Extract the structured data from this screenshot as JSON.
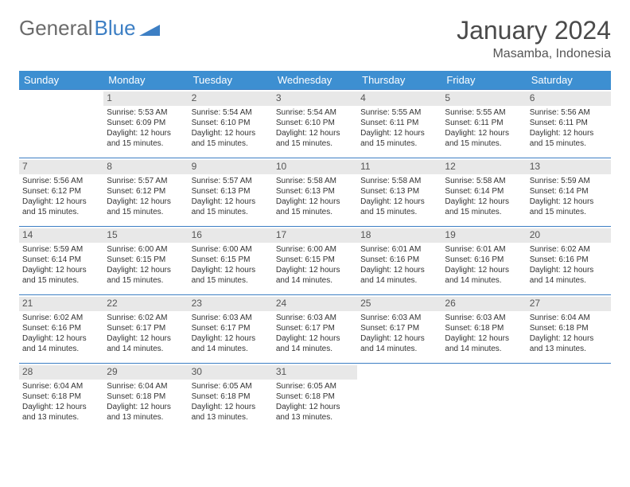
{
  "logo": {
    "text1": "General",
    "text2": "Blue"
  },
  "title": "January 2024",
  "location": "Masamba, Indonesia",
  "colors": {
    "header_bg": "#3d8fd1",
    "header_text": "#ffffff",
    "border": "#3d7fc4",
    "daynum_bg": "#e8e8e8",
    "logo_gray": "#6b6b6b",
    "logo_blue": "#3d7fc4"
  },
  "weekdays": [
    "Sunday",
    "Monday",
    "Tuesday",
    "Wednesday",
    "Thursday",
    "Friday",
    "Saturday"
  ],
  "weeks": [
    [
      null,
      {
        "d": "1",
        "sr": "5:53 AM",
        "ss": "6:09 PM",
        "dl": "12 hours and 15 minutes."
      },
      {
        "d": "2",
        "sr": "5:54 AM",
        "ss": "6:10 PM",
        "dl": "12 hours and 15 minutes."
      },
      {
        "d": "3",
        "sr": "5:54 AM",
        "ss": "6:10 PM",
        "dl": "12 hours and 15 minutes."
      },
      {
        "d": "4",
        "sr": "5:55 AM",
        "ss": "6:11 PM",
        "dl": "12 hours and 15 minutes."
      },
      {
        "d": "5",
        "sr": "5:55 AM",
        "ss": "6:11 PM",
        "dl": "12 hours and 15 minutes."
      },
      {
        "d": "6",
        "sr": "5:56 AM",
        "ss": "6:11 PM",
        "dl": "12 hours and 15 minutes."
      }
    ],
    [
      {
        "d": "7",
        "sr": "5:56 AM",
        "ss": "6:12 PM",
        "dl": "12 hours and 15 minutes."
      },
      {
        "d": "8",
        "sr": "5:57 AM",
        "ss": "6:12 PM",
        "dl": "12 hours and 15 minutes."
      },
      {
        "d": "9",
        "sr": "5:57 AM",
        "ss": "6:13 PM",
        "dl": "12 hours and 15 minutes."
      },
      {
        "d": "10",
        "sr": "5:58 AM",
        "ss": "6:13 PM",
        "dl": "12 hours and 15 minutes."
      },
      {
        "d": "11",
        "sr": "5:58 AM",
        "ss": "6:13 PM",
        "dl": "12 hours and 15 minutes."
      },
      {
        "d": "12",
        "sr": "5:58 AM",
        "ss": "6:14 PM",
        "dl": "12 hours and 15 minutes."
      },
      {
        "d": "13",
        "sr": "5:59 AM",
        "ss": "6:14 PM",
        "dl": "12 hours and 15 minutes."
      }
    ],
    [
      {
        "d": "14",
        "sr": "5:59 AM",
        "ss": "6:14 PM",
        "dl": "12 hours and 15 minutes."
      },
      {
        "d": "15",
        "sr": "6:00 AM",
        "ss": "6:15 PM",
        "dl": "12 hours and 15 minutes."
      },
      {
        "d": "16",
        "sr": "6:00 AM",
        "ss": "6:15 PM",
        "dl": "12 hours and 15 minutes."
      },
      {
        "d": "17",
        "sr": "6:00 AM",
        "ss": "6:15 PM",
        "dl": "12 hours and 14 minutes."
      },
      {
        "d": "18",
        "sr": "6:01 AM",
        "ss": "6:16 PM",
        "dl": "12 hours and 14 minutes."
      },
      {
        "d": "19",
        "sr": "6:01 AM",
        "ss": "6:16 PM",
        "dl": "12 hours and 14 minutes."
      },
      {
        "d": "20",
        "sr": "6:02 AM",
        "ss": "6:16 PM",
        "dl": "12 hours and 14 minutes."
      }
    ],
    [
      {
        "d": "21",
        "sr": "6:02 AM",
        "ss": "6:16 PM",
        "dl": "12 hours and 14 minutes."
      },
      {
        "d": "22",
        "sr": "6:02 AM",
        "ss": "6:17 PM",
        "dl": "12 hours and 14 minutes."
      },
      {
        "d": "23",
        "sr": "6:03 AM",
        "ss": "6:17 PM",
        "dl": "12 hours and 14 minutes."
      },
      {
        "d": "24",
        "sr": "6:03 AM",
        "ss": "6:17 PM",
        "dl": "12 hours and 14 minutes."
      },
      {
        "d": "25",
        "sr": "6:03 AM",
        "ss": "6:17 PM",
        "dl": "12 hours and 14 minutes."
      },
      {
        "d": "26",
        "sr": "6:03 AM",
        "ss": "6:18 PM",
        "dl": "12 hours and 14 minutes."
      },
      {
        "d": "27",
        "sr": "6:04 AM",
        "ss": "6:18 PM",
        "dl": "12 hours and 13 minutes."
      }
    ],
    [
      {
        "d": "28",
        "sr": "6:04 AM",
        "ss": "6:18 PM",
        "dl": "12 hours and 13 minutes."
      },
      {
        "d": "29",
        "sr": "6:04 AM",
        "ss": "6:18 PM",
        "dl": "12 hours and 13 minutes."
      },
      {
        "d": "30",
        "sr": "6:05 AM",
        "ss": "6:18 PM",
        "dl": "12 hours and 13 minutes."
      },
      {
        "d": "31",
        "sr": "6:05 AM",
        "ss": "6:18 PM",
        "dl": "12 hours and 13 minutes."
      },
      null,
      null,
      null
    ]
  ]
}
